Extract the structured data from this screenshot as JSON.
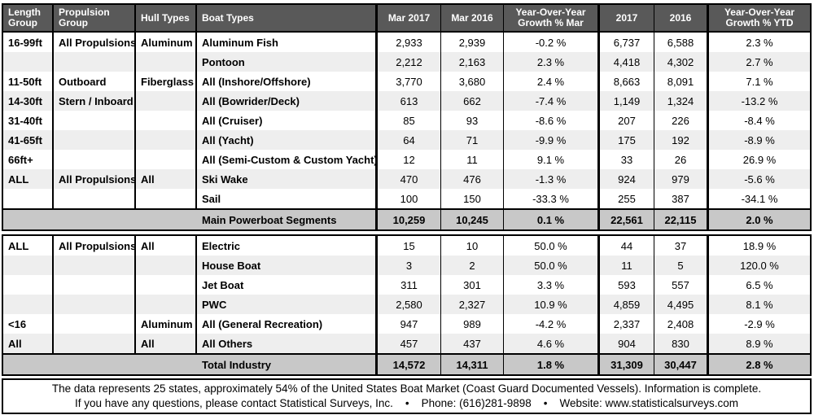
{
  "colors": {
    "header_bg": "#595959",
    "header_text": "#ffffff",
    "summary_bg": "#c8c8c8",
    "stripe_bg": "#eeeeee",
    "border_color": "#000000"
  },
  "column_keys": [
    "length-group",
    "propulsion-group",
    "hull-types",
    "boat-types",
    "mar-2017",
    "mar-2016",
    "yoy-growth-mar",
    "total-2017",
    "total-2016",
    "yoy-growth-ytd"
  ],
  "chart_data": {
    "type": "table",
    "columns": [
      "Length Group",
      "Propulsion Group",
      "Hull Types",
      "Boat Types",
      "Mar 2017",
      "Mar 2016",
      "Year-Over-Year Growth % Mar",
      "2017",
      "2016",
      "Year-Over-Year Growth % YTD"
    ],
    "sections": [
      {
        "rows": [
          [
            "16-99ft",
            "All Propulsions",
            "Aluminum",
            "Aluminum Fish",
            "2,933",
            "2,939",
            "-0.2 %",
            "6,737",
            "6,588",
            "2.3 %"
          ],
          [
            "",
            "",
            "",
            "Pontoon",
            "2,212",
            "2,163",
            "2.3 %",
            "4,418",
            "4,302",
            "2.7 %"
          ],
          [
            "11-50ft",
            "Outboard",
            "Fiberglass",
            "All (Inshore/Offshore)",
            "3,770",
            "3,680",
            "2.4 %",
            "8,663",
            "8,091",
            "7.1 %"
          ],
          [
            "14-30ft",
            "Stern / Inboard",
            "",
            "All (Bowrider/Deck)",
            "613",
            "662",
            "-7.4 %",
            "1,149",
            "1,324",
            "-13.2 %"
          ],
          [
            "31-40ft",
            "",
            "",
            "All (Cruiser)",
            "85",
            "93",
            "-8.6 %",
            "207",
            "226",
            "-8.4 %"
          ],
          [
            "41-65ft",
            "",
            "",
            "All (Yacht)",
            "64",
            "71",
            "-9.9 %",
            "175",
            "192",
            "-8.9 %"
          ],
          [
            "66ft+",
            "",
            "",
            "All (Semi-Custom & Custom Yacht)",
            "12",
            "11",
            "9.1 %",
            "33",
            "26",
            "26.9 %"
          ],
          [
            "ALL",
            "All Propulsions",
            "All",
            "Ski Wake",
            "470",
            "476",
            "-1.3 %",
            "924",
            "979",
            "-5.6 %"
          ],
          [
            "",
            "",
            "",
            "Sail",
            "100",
            "150",
            "-33.3 %",
            "255",
            "387",
            "-34.1 %"
          ]
        ],
        "summary": {
          "label": "Main Powerboat Segments",
          "values": [
            "10,259",
            "10,245",
            "0.1 %",
            "22,561",
            "22,115",
            "2.0 %"
          ]
        }
      },
      {
        "rows": [
          [
            "ALL",
            "All Propulsions",
            "All",
            "Electric",
            "15",
            "10",
            "50.0 %",
            "44",
            "37",
            "18.9 %"
          ],
          [
            "",
            "",
            "",
            "House Boat",
            "3",
            "2",
            "50.0 %",
            "11",
            "5",
            "120.0 %"
          ],
          [
            "",
            "",
            "",
            "Jet Boat",
            "311",
            "301",
            "3.3 %",
            "593",
            "557",
            "6.5 %"
          ],
          [
            "",
            "",
            "",
            "PWC",
            "2,580",
            "2,327",
            "10.9 %",
            "4,859",
            "4,495",
            "8.1 %"
          ],
          [
            "<16",
            "",
            "Aluminum",
            "All (General Recreation)",
            "947",
            "989",
            "-4.2 %",
            "2,337",
            "2,408",
            "-2.9 %"
          ],
          [
            "All",
            "",
            "All",
            "All Others",
            "457",
            "437",
            "4.6 %",
            "904",
            "830",
            "8.9 %"
          ]
        ],
        "summary": {
          "label": "Total Industry",
          "values": [
            "14,572",
            "14,311",
            "1.8 %",
            "31,309",
            "30,447",
            "2.8 %"
          ]
        }
      }
    ]
  },
  "footer": {
    "line1": "The data represents 25 states, approximately 54% of the United States Boat Market (Coast Guard Documented Vessels). Information is complete.",
    "line2": "If you have any questions, please contact Statistical Surveys, Inc.    •    Phone: (616)281-9898    •    Website: www.statisticalsurveys.com"
  }
}
